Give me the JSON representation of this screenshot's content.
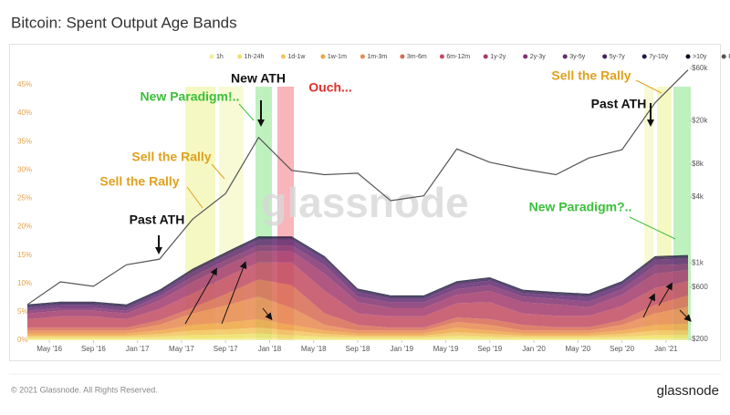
{
  "chart_data": {
    "type": "stacked-area-with-line",
    "title": "Bitcoin: Spent Output Age Bands",
    "footer": "© 2021 Glassnode. All Rights Reserved.",
    "logo": "glassnode",
    "watermark": "glassnode",
    "x": [
      "2016-03",
      "2016-06",
      "2016-09",
      "2016-12",
      "2017-03",
      "2017-06",
      "2017-09",
      "2017-12",
      "2018-03",
      "2018-06",
      "2018-09",
      "2018-12",
      "2019-03",
      "2019-06",
      "2019-09",
      "2019-12",
      "2020-03",
      "2020-06",
      "2020-09",
      "2020-12",
      "2021-03"
    ],
    "xlim": [
      "2016-03",
      "2021-03"
    ],
    "xticks": [
      {
        "value": "2016-05",
        "label": "May '16"
      },
      {
        "value": "2016-09",
        "label": "Sep '16"
      },
      {
        "value": "2017-01",
        "label": "Jan '17"
      },
      {
        "value": "2017-05",
        "label": "May '17"
      },
      {
        "value": "2017-09",
        "label": "Sep '17"
      },
      {
        "value": "2018-01",
        "label": "Jan '18"
      },
      {
        "value": "2018-05",
        "label": "May '18"
      },
      {
        "value": "2018-09",
        "label": "Sep '18"
      },
      {
        "value": "2019-01",
        "label": "Jan '19"
      },
      {
        "value": "2019-05",
        "label": "May '19"
      },
      {
        "value": "2019-09",
        "label": "Sep '19"
      },
      {
        "value": "2020-01",
        "label": "Jan '20"
      },
      {
        "value": "2020-05",
        "label": "May '20"
      },
      {
        "value": "2020-09",
        "label": "Sep '20"
      },
      {
        "value": "2021-01",
        "label": "Jan '21"
      }
    ],
    "ylim": [
      0,
      48.7
    ],
    "yticks": [
      {
        "value": 0,
        "label": "0%"
      },
      {
        "value": 5,
        "label": "5%"
      },
      {
        "value": 10,
        "label": "10%"
      },
      {
        "value": 15,
        "label": "15%"
      },
      {
        "value": 20,
        "label": "20%"
      },
      {
        "value": 25,
        "label": "25%"
      },
      {
        "value": 30,
        "label": "30%"
      },
      {
        "value": 35,
        "label": "35%"
      },
      {
        "value": 40,
        "label": "40%"
      },
      {
        "value": 45,
        "label": "45%"
      }
    ],
    "y2lim": [
      196,
      66000
    ],
    "y2log": true,
    "y2ticks": [
      {
        "value": 200,
        "label": "$200"
      },
      {
        "value": 600,
        "label": "$600"
      },
      {
        "value": 1000,
        "label": "$1k"
      },
      {
        "value": 4000,
        "label": "$4k"
      },
      {
        "value": 8000,
        "label": "$8k"
      },
      {
        "value": 20000,
        "label": "$20k"
      },
      {
        "value": 60000,
        "label": "$60k"
      }
    ],
    "series": [
      {
        "name": "1h",
        "color": "#f3ee9c",
        "values": [
          0.2,
          0.2,
          0.2,
          0.2,
          0.2,
          0.3,
          0.3,
          0.4,
          0.3,
          0.2,
          0.2,
          0.2,
          0.2,
          0.3,
          0.2,
          0.2,
          0.2,
          0.2,
          0.2,
          0.3,
          0.3
        ]
      },
      {
        "name": "1h-24h",
        "color": "#eee06a",
        "values": [
          0.3,
          0.3,
          0.3,
          0.3,
          0.4,
          0.6,
          0.7,
          0.8,
          0.6,
          0.4,
          0.3,
          0.3,
          0.3,
          0.5,
          0.4,
          0.3,
          0.3,
          0.3,
          0.4,
          0.6,
          0.6
        ]
      },
      {
        "name": "1d-1w",
        "color": "#f2c45e",
        "values": [
          0.3,
          0.3,
          0.3,
          0.3,
          0.5,
          0.8,
          0.9,
          1.0,
          0.8,
          0.5,
          0.3,
          0.3,
          0.3,
          0.6,
          0.5,
          0.3,
          0.3,
          0.3,
          0.5,
          0.8,
          0.8
        ]
      },
      {
        "name": "1w-1m",
        "color": "#eea447",
        "values": [
          0.4,
          0.4,
          0.4,
          0.4,
          0.6,
          1.0,
          1.2,
          1.5,
          1.0,
          0.6,
          0.4,
          0.4,
          0.4,
          0.8,
          0.6,
          0.4,
          0.4,
          0.4,
          0.6,
          1.0,
          1.2
        ]
      },
      {
        "name": "1m-3m",
        "color": "#e78a50",
        "values": [
          0.5,
          0.5,
          0.5,
          0.5,
          1,
          2,
          3,
          4,
          3,
          1,
          0.5,
          0.5,
          0.5,
          1,
          1,
          0.5,
          0.5,
          0.5,
          1,
          2,
          3
        ]
      },
      {
        "name": "3m-6m",
        "color": "#d86b52",
        "values": [
          0.5,
          0.5,
          0.5,
          0.5,
          0.8,
          1,
          2,
          3,
          4,
          2,
          1,
          0.5,
          0.5,
          0.8,
          1,
          1,
          0.6,
          0.6,
          0.8,
          1.5,
          2
        ]
      },
      {
        "name": "6m-12m",
        "color": "#c24b62",
        "values": [
          1.5,
          2,
          2,
          1.5,
          2,
          2.5,
          3,
          3,
          4,
          4,
          2,
          2,
          2,
          2.5,
          3,
          2,
          2,
          2,
          2.5,
          3,
          2.5
        ]
      },
      {
        "name": "1y-2y",
        "color": "#a23b6c",
        "values": [
          1,
          1,
          1,
          1,
          1.5,
          2,
          2,
          2,
          2,
          3,
          2,
          1.5,
          1.5,
          1.5,
          2,
          2,
          2,
          1.5,
          2,
          2.5,
          2
        ]
      },
      {
        "name": "2y-3y",
        "color": "#823170",
        "values": [
          0.5,
          0.5,
          0.5,
          0.5,
          0.8,
          1,
          1,
          1,
          1,
          1.5,
          1,
          1,
          1,
          1,
          1,
          1,
          1,
          1,
          1,
          1.5,
          1
        ]
      },
      {
        "name": "3y-5y",
        "color": "#622a70",
        "values": [
          0.5,
          0.5,
          0.5,
          0.5,
          0.5,
          0.8,
          0.8,
          1,
          1,
          1,
          0.8,
          0.6,
          0.6,
          0.8,
          0.8,
          0.6,
          0.6,
          0.8,
          0.8,
          1,
          1
        ]
      },
      {
        "name": "5y-7y",
        "color": "#42215c",
        "values": [
          0.3,
          0.3,
          0.3,
          0.3,
          0.3,
          0.3,
          0.3,
          0.3,
          0.3,
          0.3,
          0.3,
          0.3,
          0.3,
          0.3,
          0.3,
          0.3,
          0.3,
          0.3,
          0.3,
          0.3,
          0.3
        ]
      },
      {
        "name": "7y-10y",
        "color": "#221a42",
        "values": [
          0.2,
          0.2,
          0.2,
          0.2,
          0.2,
          0.2,
          0.2,
          0.2,
          0.2,
          0.2,
          0.2,
          0.2,
          0.2,
          0.2,
          0.2,
          0.2,
          0.2,
          0.2,
          0.2,
          0.2,
          0.2
        ]
      },
      {
        "name": ">10y",
        "color": "#0b0b22",
        "values": [
          0.1,
          0.1,
          0.1,
          0.1,
          0.1,
          0.1,
          0.1,
          0.1,
          0.1,
          0.1,
          0.1,
          0.1,
          0.1,
          0.1,
          0.1,
          0.1,
          0.1,
          0.1,
          0.1,
          0.1,
          0.1
        ]
      },
      {
        "name": "Price [USD]",
        "color": "#555555",
        "axis": "y2",
        "values": [
          415,
          670,
          610,
          960,
          1080,
          2500,
          4300,
          14000,
          7000,
          6400,
          6600,
          3700,
          4100,
          11000,
          8300,
          7200,
          6400,
          9100,
          10800,
          29000,
          58000
        ]
      }
    ],
    "annotations": [
      {
        "text": "New Paradigm!..",
        "color": "#3bbf3b"
      },
      {
        "text": "New ATH",
        "color": "#111111"
      },
      {
        "text": "Ouch...",
        "color": "#e0302a"
      },
      {
        "text": "Sell the Rally",
        "color": "#e0a11e"
      },
      {
        "text": "Sell the Rally",
        "color": "#e0a11e"
      },
      {
        "text": "Past ATH",
        "color": "#111111"
      },
      {
        "text": "Sell the Rally",
        "color": "#e0a11e"
      },
      {
        "text": "Past ATH",
        "color": "#111111"
      },
      {
        "text": "New Paradigm?..",
        "color": "#3bbf3b"
      }
    ]
  }
}
